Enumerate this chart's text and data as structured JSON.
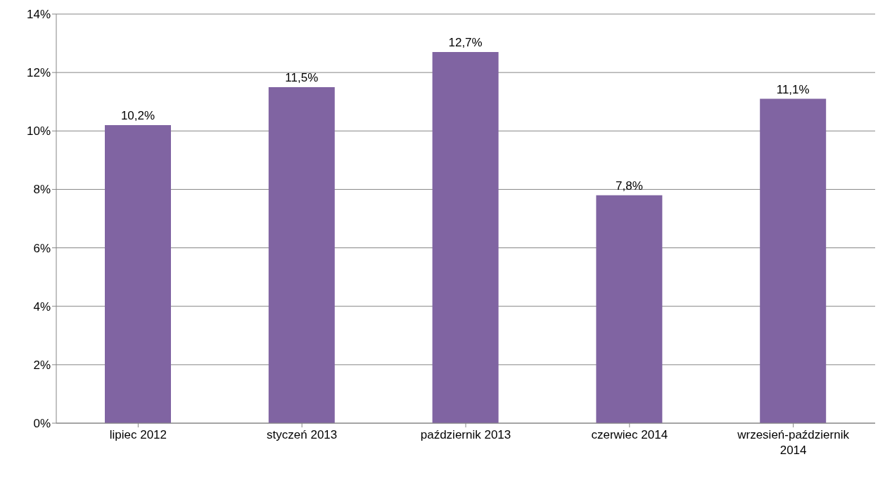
{
  "chart_data": {
    "type": "bar",
    "categories": [
      "lipiec 2012",
      "styczeń 2013",
      "październik 2013",
      "czerwiec 2014",
      "wrzesień-październik 2014"
    ],
    "values": [
      10.2,
      11.5,
      12.7,
      7.8,
      11.1
    ],
    "value_labels": [
      "10,2%",
      "11,5%",
      "12,7%",
      "7,8%",
      "11,1%"
    ],
    "color": "#8064a2",
    "ylim": [
      0,
      14
    ],
    "yticks": [
      {
        "value": 0,
        "label": "0%"
      },
      {
        "value": 2,
        "label": "2%"
      },
      {
        "value": 4,
        "label": "4%"
      },
      {
        "value": 6,
        "label": "6%"
      },
      {
        "value": 8,
        "label": "8%"
      },
      {
        "value": 10,
        "label": "10%"
      },
      {
        "value": 12,
        "label": "12%"
      },
      {
        "value": 14,
        "label": "14%"
      }
    ],
    "grid": "y"
  }
}
